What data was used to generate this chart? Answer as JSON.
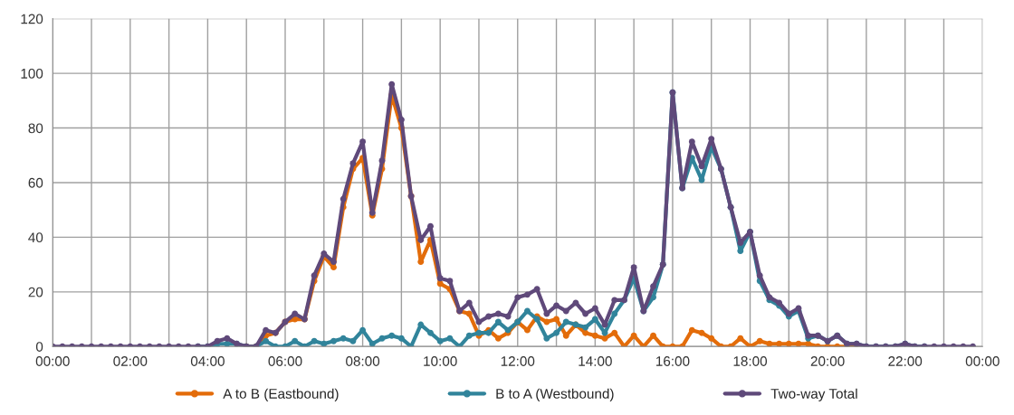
{
  "chart_data": {
    "type": "line",
    "x": [
      0,
      0.25,
      0.5,
      0.75,
      1,
      1.25,
      1.5,
      1.75,
      2,
      2.25,
      2.5,
      2.75,
      3,
      3.25,
      3.5,
      3.75,
      4,
      4.25,
      4.5,
      4.75,
      5,
      5.25,
      5.5,
      5.75,
      6,
      6.25,
      6.5,
      6.75,
      7,
      7.25,
      7.5,
      7.75,
      8,
      8.25,
      8.5,
      8.75,
      9,
      9.25,
      9.5,
      9.75,
      10,
      10.25,
      10.5,
      10.75,
      11,
      11.25,
      11.5,
      11.75,
      12,
      12.25,
      12.5,
      12.75,
      13,
      13.25,
      13.5,
      13.75,
      14,
      14.25,
      14.5,
      14.75,
      15,
      15.25,
      15.5,
      15.75,
      16,
      16.25,
      16.5,
      16.75,
      17,
      17.25,
      17.5,
      17.75,
      18,
      18.25,
      18.5,
      18.75,
      19,
      19.25,
      19.5,
      19.75,
      20,
      20.25,
      20.5,
      20.75,
      21,
      21.25,
      21.5,
      21.75,
      22,
      22.25,
      22.5,
      22.75,
      23,
      23.25,
      23.5,
      23.75
    ],
    "series": [
      {
        "name": "A to B (Eastbound)",
        "color": "#e36c0a",
        "values": [
          null,
          null,
          null,
          null,
          null,
          null,
          null,
          null,
          null,
          null,
          null,
          null,
          null,
          null,
          null,
          null,
          null,
          null,
          null,
          null,
          0,
          0,
          4,
          5,
          9,
          10,
          10,
          24,
          33,
          29,
          51,
          65,
          69,
          48,
          65,
          92,
          80,
          55,
          31,
          39,
          23,
          21,
          13,
          12,
          4,
          6,
          3,
          5,
          9,
          6,
          11,
          9,
          10,
          4,
          8,
          5,
          4,
          3,
          5,
          0,
          4,
          0,
          4,
          0,
          0,
          0,
          6,
          5,
          3,
          0,
          0,
          3,
          0,
          2,
          1,
          1,
          1,
          1,
          1,
          0,
          0,
          0,
          0,
          0,
          null,
          null,
          null,
          null,
          null,
          null,
          null,
          null,
          null,
          null,
          null,
          null
        ]
      },
      {
        "name": "B to A (Westbound)",
        "color": "#31849b",
        "values": [
          null,
          null,
          null,
          null,
          null,
          null,
          null,
          null,
          null,
          null,
          null,
          null,
          null,
          null,
          null,
          0,
          0,
          1,
          1,
          1,
          0,
          0,
          2,
          0,
          0,
          2,
          0,
          2,
          1,
          2,
          3,
          2,
          6,
          1,
          3,
          4,
          3,
          0,
          8,
          5,
          2,
          3,
          0,
          4,
          5,
          5,
          9,
          6,
          9,
          13,
          10,
          3,
          5,
          9,
          8,
          7,
          10,
          5,
          12,
          17,
          25,
          13,
          18,
          30,
          93,
          58,
          69,
          61,
          73,
          65,
          51,
          35,
          42,
          24,
          17,
          15,
          11,
          13,
          3,
          4,
          2,
          4,
          1,
          1,
          0,
          0,
          0,
          0,
          1,
          0,
          0,
          null,
          null,
          null,
          null,
          null
        ]
      },
      {
        "name": "Two-way Total",
        "color": "#5f497a",
        "values": [
          0,
          0,
          0,
          0,
          0,
          0,
          0,
          0,
          0,
          0,
          0,
          0,
          0,
          0,
          0,
          0,
          0,
          2,
          3,
          1,
          0,
          0,
          6,
          5,
          9,
          12,
          10,
          26,
          34,
          31,
          54,
          67,
          75,
          49,
          68,
          96,
          83,
          55,
          39,
          44,
          25,
          24,
          13,
          16,
          9,
          11,
          12,
          11,
          18,
          19,
          21,
          12,
          15,
          13,
          16,
          12,
          14,
          8,
          17,
          17,
          29,
          13,
          22,
          30,
          93,
          58,
          75,
          66,
          76,
          65,
          51,
          38,
          42,
          26,
          18,
          16,
          12,
          14,
          4,
          4,
          2,
          4,
          1,
          1,
          0,
          0,
          0,
          0,
          1,
          0,
          0,
          0,
          0,
          0,
          0,
          0
        ]
      }
    ],
    "xlim": [
      0,
      24
    ],
    "xticks": [
      {
        "value": 0,
        "label": "00:00"
      },
      {
        "value": 1,
        "label": null
      },
      {
        "value": 2,
        "label": "02:00"
      },
      {
        "value": 3,
        "label": null
      },
      {
        "value": 4,
        "label": "04:00"
      },
      {
        "value": 5,
        "label": null
      },
      {
        "value": 6,
        "label": "06:00"
      },
      {
        "value": 7,
        "label": null
      },
      {
        "value": 8,
        "label": "08:00"
      },
      {
        "value": 9,
        "label": null
      },
      {
        "value": 10,
        "label": "10:00"
      },
      {
        "value": 11,
        "label": null
      },
      {
        "value": 12,
        "label": "12:00"
      },
      {
        "value": 13,
        "label": null
      },
      {
        "value": 14,
        "label": "14:00"
      },
      {
        "value": 15,
        "label": null
      },
      {
        "value": 16,
        "label": "16:00"
      },
      {
        "value": 17,
        "label": null
      },
      {
        "value": 18,
        "label": "18:00"
      },
      {
        "value": 19,
        "label": null
      },
      {
        "value": 20,
        "label": "20:00"
      },
      {
        "value": 21,
        "label": null
      },
      {
        "value": 22,
        "label": "22:00"
      },
      {
        "value": 23,
        "label": null
      },
      {
        "value": 24,
        "label": "00:00"
      }
    ],
    "ylim": [
      0,
      120
    ],
    "yticks": [
      0,
      20,
      40,
      60,
      80,
      100,
      120
    ],
    "grid": true,
    "legend": "bottom",
    "marker": "circle",
    "line_style": "solid"
  }
}
